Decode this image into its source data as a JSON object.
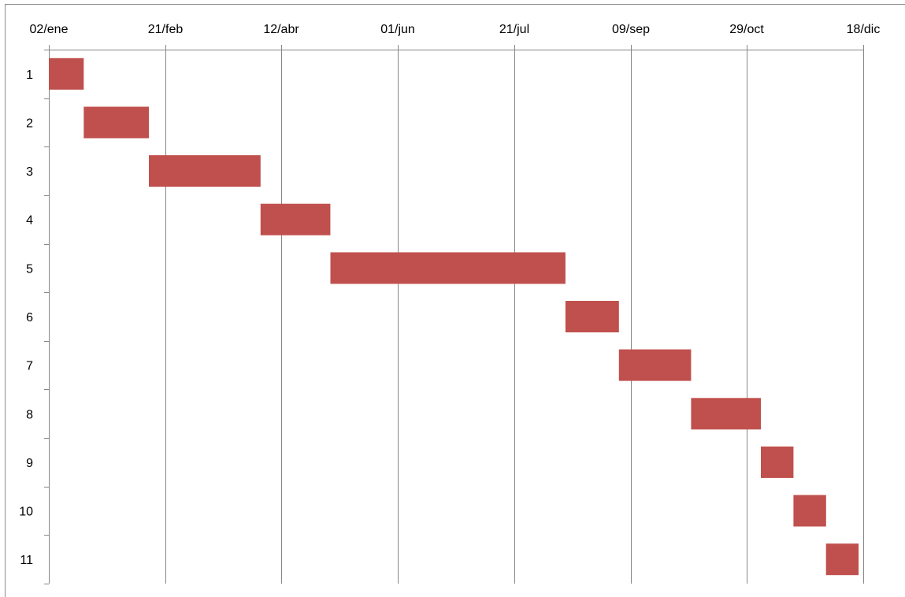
{
  "colors": {
    "bar": "#c0504d",
    "grid": "#868686",
    "axis": "#868686",
    "frame": "#8c8c8c"
  },
  "chart_data": {
    "type": "gantt",
    "title": "",
    "xlabel": "",
    "ylabel": "",
    "x_axis": {
      "position": "top",
      "format": "dd/mmm",
      "range": [
        "2013-01-02",
        "2013-12-18"
      ],
      "tick_labels": [
        "02/ene",
        "21/feb",
        "12/abr",
        "01/jun",
        "21/jul",
        "09/sep",
        "29/oct",
        "18/dic"
      ],
      "tick_dates": [
        "2013-01-02",
        "2013-02-21",
        "2013-04-12",
        "2013-06-01",
        "2013-07-21",
        "2013-09-09",
        "2013-10-29",
        "2013-12-18"
      ]
    },
    "y_axis": {
      "categories": [
        "1",
        "2",
        "3",
        "4",
        "5",
        "6",
        "7",
        "8",
        "9",
        "10",
        "11"
      ],
      "reversed": true
    },
    "grid": {
      "vertical": true,
      "horizontal": false
    },
    "legend": "none",
    "tasks": [
      {
        "label": "1",
        "start": "2013-01-02",
        "end": "2013-01-17"
      },
      {
        "label": "2",
        "start": "2013-01-17",
        "end": "2013-02-14"
      },
      {
        "label": "3",
        "start": "2013-02-14",
        "end": "2013-04-03"
      },
      {
        "label": "4",
        "start": "2013-04-03",
        "end": "2013-05-03"
      },
      {
        "label": "5",
        "start": "2013-05-03",
        "end": "2013-08-12"
      },
      {
        "label": "6",
        "start": "2013-08-12",
        "end": "2013-09-04"
      },
      {
        "label": "7",
        "start": "2013-09-04",
        "end": "2013-10-05"
      },
      {
        "label": "8",
        "start": "2013-10-05",
        "end": "2013-11-04"
      },
      {
        "label": "9",
        "start": "2013-11-04",
        "end": "2013-11-18"
      },
      {
        "label": "10",
        "start": "2013-11-18",
        "end": "2013-12-02"
      },
      {
        "label": "11",
        "start": "2013-12-02",
        "end": "2013-12-16"
      }
    ]
  }
}
